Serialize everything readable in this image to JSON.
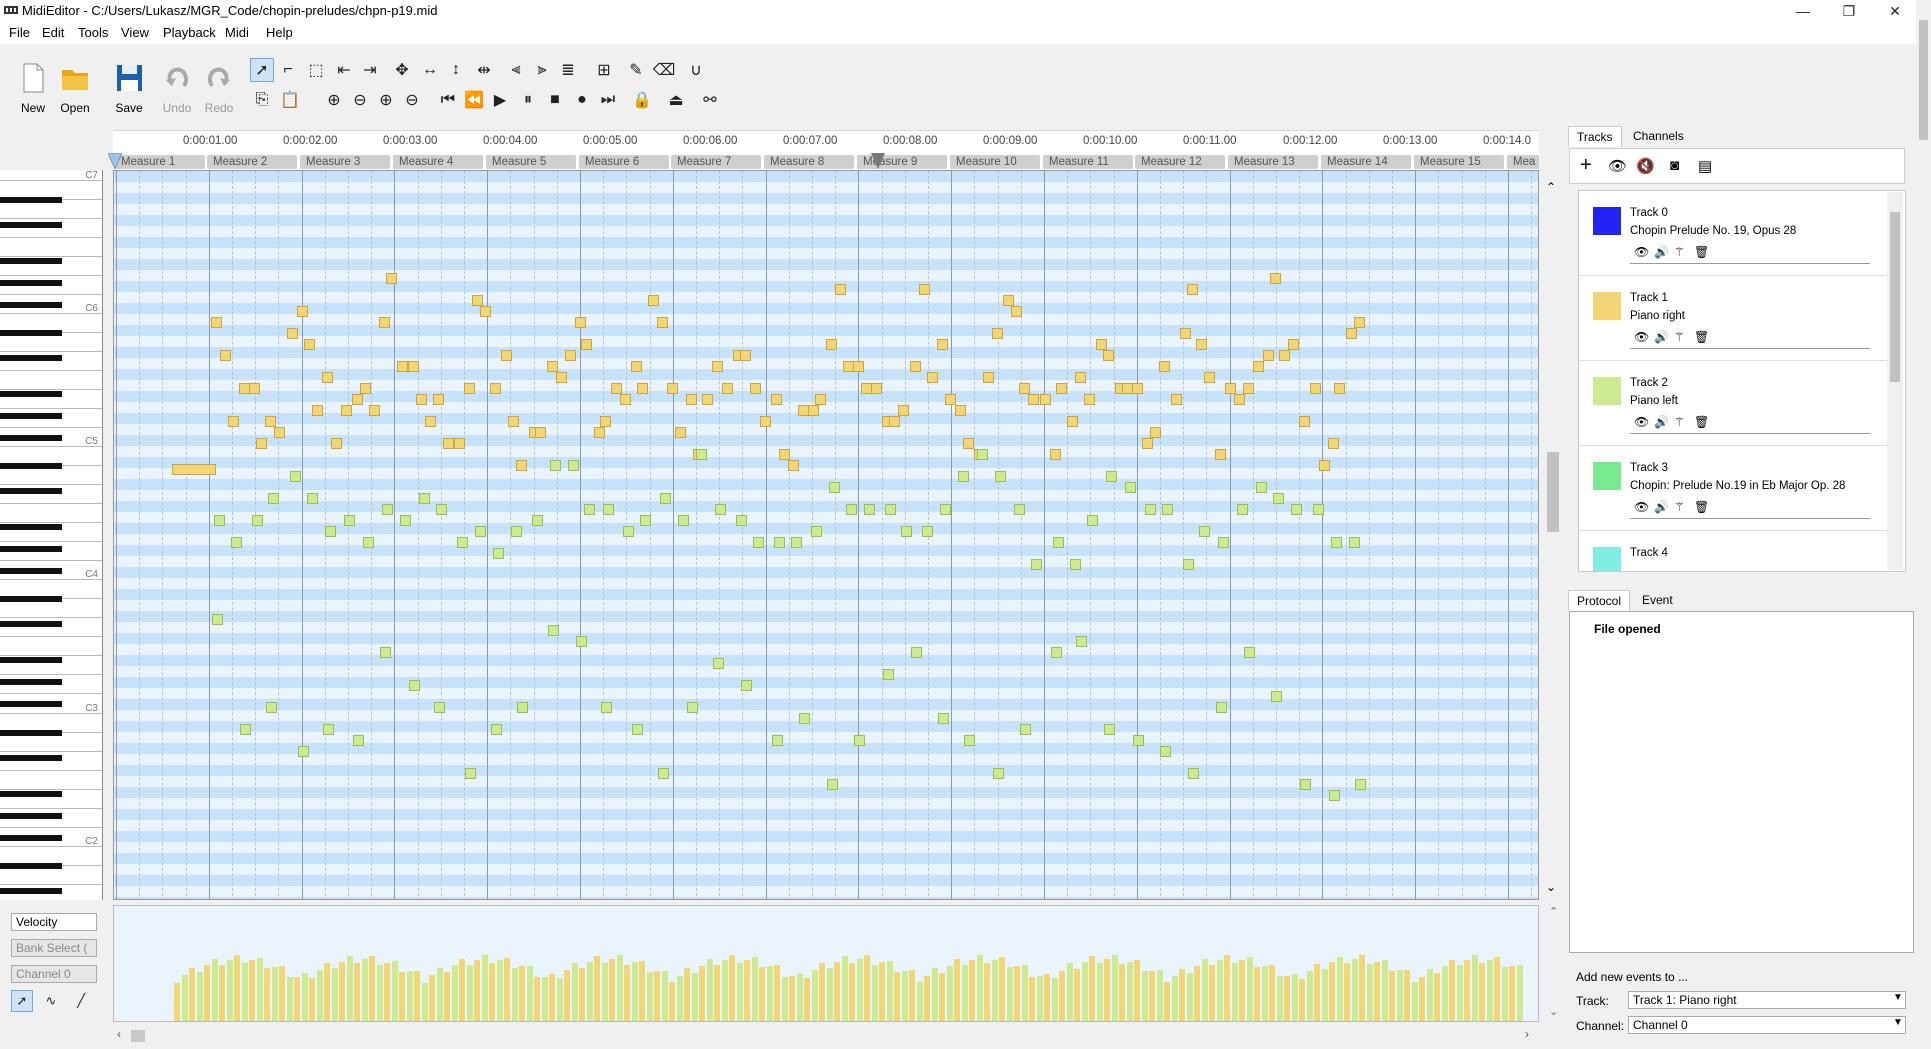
{
  "window": {
    "title": "MidiEditor - C:/Users/Lukasz/MGR_Code/chopin-preludes/chpn-p19.mid",
    "minimize": "—",
    "maximize": "❐",
    "close": "✕"
  },
  "menu": [
    "File",
    "Edit",
    "Tools",
    "View",
    "Playback",
    "Midi",
    "Help"
  ],
  "toolbar": {
    "new": "New",
    "open": "Open",
    "save": "Save",
    "undo": "Undo",
    "redo": "Redo"
  },
  "ruler": {
    "times": [
      "0:00:01.00",
      "0:00:02.00",
      "0:00:03.00",
      "0:00:04.00",
      "0:00:05.00",
      "0:00:06.00",
      "0:00:07.00",
      "0:00:08.00",
      "0:00:09.00",
      "0:00:10.00",
      "0:00:11.00",
      "0:00:12.00",
      "0:00:13.00",
      "0:00:14.0"
    ],
    "measures": [
      "Measure 1",
      "Measure 2",
      "Measure 3",
      "Measure 4",
      "Measure 5",
      "Measure 6",
      "Measure 7",
      "Measure 8",
      "Measure 9",
      "Measure 10",
      "Measure 11",
      "Measure 12",
      "Measure 13",
      "Measure 14",
      "Measure 15",
      "Mea"
    ]
  },
  "piano": {
    "labels": [
      "C7",
      "C6",
      "C5",
      "C4",
      "C3",
      "C2"
    ]
  },
  "colors": {
    "track1": "#f2d575",
    "track2": "#cdea90",
    "accent": "#1f63d8"
  },
  "left_controls": {
    "velocity": "Velocity",
    "bank": "Bank Select (",
    "channel": "Channel 0"
  },
  "tabs_top": [
    "Tracks",
    "Channels"
  ],
  "tracks": [
    {
      "name": "Track 0",
      "desc": "Chopin Prelude  No. 19, Opus 28",
      "color": "#2323f5"
    },
    {
      "name": "Track 1",
      "desc": "Piano right",
      "color": "#f2d575"
    },
    {
      "name": "Track 2",
      "desc": "Piano left",
      "color": "#cdea90"
    },
    {
      "name": "Track 3",
      "desc": "Chopin: Prelude No.19 in Eb Major Op. 28",
      "color": "#78ea90"
    },
    {
      "name": "Track 4",
      "desc": "",
      "color": "#80eee0"
    }
  ],
  "tabs_bottom": [
    "Protocol",
    "Event"
  ],
  "protocol": {
    "entry": "File opened"
  },
  "new_events": {
    "heading": "Add new events to ...",
    "track_label": "Track:",
    "track_value": "Track 1: Piano right",
    "channel_label": "Channel:",
    "channel_value": "Channel 0"
  }
}
